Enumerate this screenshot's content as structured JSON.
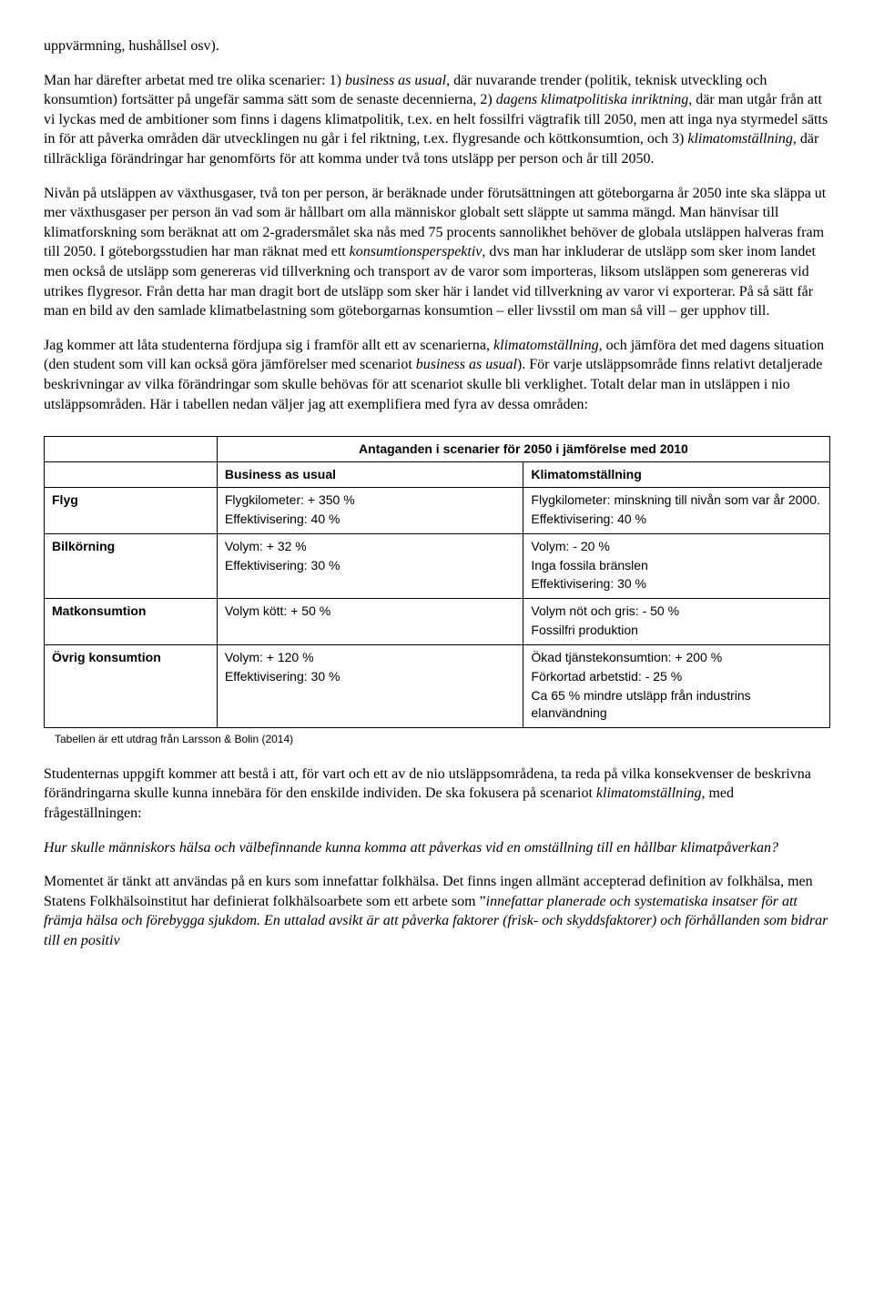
{
  "paragraphs": {
    "p1_a": "uppvärmning, hushållsel osv).",
    "p1_b_pre": "Man har därefter arbetat med tre olika scenarier: 1) ",
    "p1_b_i1": "business as usual",
    "p1_b_mid1": ", där nuvarande trender (politik, teknisk utveckling och konsumtion) fortsätter på ungefär samma sätt som de senaste decennierna, 2) ",
    "p1_b_i2": "dagens klimatpolitiska inriktning",
    "p1_b_mid2": ", där man utgår från att vi lyckas med de ambitioner som finns i dagens klimatpolitik, t.ex. en helt fossilfri vägtrafik till 2050, men att inga nya styrmedel sätts in för att påverka områden där utvecklingen nu går i fel riktning, t.ex. flygresande och köttkonsumtion, och 3) ",
    "p1_b_i3": "klimatomställning",
    "p1_b_post": ", där tillräckliga förändringar har genomförts för att komma under två tons utsläpp per person och år till 2050.",
    "p2_pre": "Nivån på utsläppen av växthusgaser, två ton per person, är beräknade under förutsättningen att göteborgarna år 2050 inte ska släppa ut mer växthusgaser per person än vad som är hållbart om alla människor globalt sett släppte ut samma mängd. Man hänvisar till klimatforskning som beräknat att om 2-gradersmålet ska nås med 75 procents sannolikhet behöver de globala utsläppen halveras fram till 2050. I göteborgsstudien har man räknat med ett ",
    "p2_i1": "konsumtionsperspektiv",
    "p2_post": ", dvs man har inkluderar de utsläpp som sker inom landet men också de utsläpp som genereras vid tillverkning och transport av de varor som importeras, liksom utsläppen som genereras vid utrikes flygresor. Från detta har man dragit bort de utsläpp som sker här i landet vid tillverkning av varor vi exporterar. På så sätt får man en bild av den samlade klimatbelastning som göteborgarnas konsumtion – eller livsstil om man så vill – ger upphov till.",
    "p3_pre": "Jag kommer att låta studenterna fördjupa sig i framför allt ett av scenarierna, ",
    "p3_i1": "klimatomställning",
    "p3_mid1": ", och jämföra det med dagens situation (den student som vill kan också göra jämförelser med scenariot ",
    "p3_i2": "business as usual",
    "p3_post": "). För varje utsläppsområde finns relativt detaljerade beskrivningar av vilka förändringar som skulle behövas för att scenariot skulle bli verklighet. Totalt delar man in utsläppen i nio utsläppsområden. Här i tabellen nedan väljer jag att exemplifiera med fyra av dessa områden:",
    "p4": "Studenternas uppgift kommer att bestå i att, för vart och ett av de nio utsläppsområdena, ta reda på vilka konsekvenser de beskrivna förändringarna skulle kunna innebära för den enskilde individen. De ska fokusera på scenariot ",
    "p4_i1": "klimatomställning",
    "p4_post": ", med frågeställningen:",
    "p5": "Hur skulle människors hälsa och välbefinnande kunna komma att påverkas vid en omställning till en hållbar klimatpåverkan?",
    "p6_pre": "Momentet är tänkt att användas på en kurs som innefattar folkhälsa. Det finns ingen allmänt accepterad definition av folkhälsa, men Statens Folkhälsoinstitut har definierat folkhälsoarbete som ett arbete som ”",
    "p6_i1": "innefattar planerade och systematiska insatser för att främja hälsa och förebygga sjukdom. En uttalad avsikt är att påverka faktorer (frisk- och skyddsfaktorer) och förhållanden som bidrar till en positiv"
  },
  "table": {
    "title": "Antaganden i scenarier för 2050 i jämförelse med 2010",
    "col_business": "Business as usual",
    "col_klimat": "Klimatomställning",
    "rows": {
      "flyg": {
        "label": "Flyg",
        "bus_1": "Flygkilometer: + 350 %",
        "bus_2": "Effektivisering: 40 %",
        "kli_1": "Flygkilometer: minskning till nivån som var år 2000.",
        "kli_2": "Effektivisering: 40 %"
      },
      "bil": {
        "label": "Bilkörning",
        "bus_1": "Volym: + 32 %",
        "bus_2": "Effektivisering: 30 %",
        "kli_1": "Volym: - 20 %",
        "kli_2": "Inga fossila bränslen",
        "kli_3": "Effektivisering: 30 %"
      },
      "mat": {
        "label": "Matkonsumtion",
        "bus_1": "Volym kött: + 50 %",
        "kli_1": "Volym nöt och gris: - 50 %",
        "kli_2": "Fossilfri produktion"
      },
      "ovrig": {
        "label": "Övrig konsumtion",
        "bus_1": "Volym: + 120 %",
        "bus_2": "Effektivisering: 30 %",
        "kli_1": "Ökad tjänstekonsumtion: + 200 %",
        "kli_2": "Förkortad arbetstid: - 25 %",
        "kli_3": "Ca 65 % mindre utsläpp från industrins elanvändning"
      }
    },
    "caption": "Tabellen är ett utdrag från Larsson & Bolin (2014)"
  }
}
